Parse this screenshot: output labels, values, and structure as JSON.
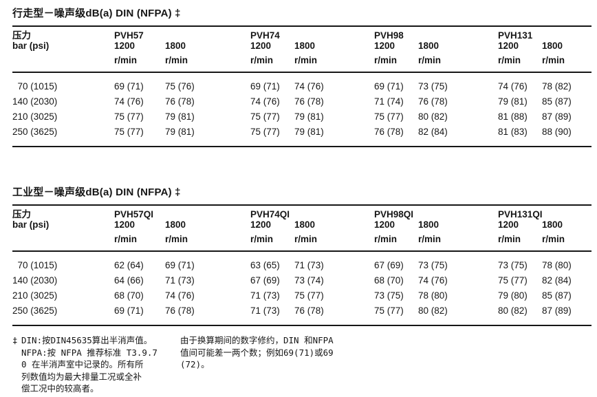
{
  "page": {
    "background": "#ffffff",
    "text_color": "#161616",
    "rule_color": "#161616"
  },
  "tables": [
    {
      "title": "行走型－噪声级dB(a) DIN (NFPA) ‡",
      "pressure_label": "压力",
      "pressure_unit": "bar (psi)",
      "groups": [
        {
          "name": "PVH57",
          "speeds": [
            {
              "rpm": "1200",
              "unit": "r/min"
            },
            {
              "rpm": "1800",
              "unit": "r/min"
            }
          ]
        },
        {
          "name": "PVH74",
          "speeds": [
            {
              "rpm": "1200",
              "unit": "r/min"
            },
            {
              "rpm": "1800",
              "unit": "r/min"
            }
          ]
        },
        {
          "name": "PVH98",
          "speeds": [
            {
              "rpm": "1200",
              "unit": "r/min"
            },
            {
              "rpm": "1800",
              "unit": "r/min"
            }
          ]
        },
        {
          "name": "PVH131",
          "speeds": [
            {
              "rpm": "1200",
              "unit": "r/min"
            },
            {
              "rpm": "1800",
              "unit": "r/min"
            }
          ]
        }
      ],
      "rows": [
        {
          "pressure": " 70 (1015)",
          "values": [
            "69 (71)",
            "75 (76)",
            "69 (71)",
            "74 (76)",
            "69 (71)",
            "73 (75)",
            "74 (76)",
            "78 (82)"
          ]
        },
        {
          "pressure": "140 (2030)",
          "values": [
            "74 (76)",
            "76 (78)",
            "74 (76)",
            "76 (78)",
            "71 (74)",
            "76 (78)",
            "79 (81)",
            "85 (87)"
          ]
        },
        {
          "pressure": "210 (3025)",
          "values": [
            "75 (77)",
            "79 (81)",
            "75 (77)",
            "79 (81)",
            "75 (77)",
            "80 (82)",
            "81 (88)",
            "87 (89)"
          ]
        },
        {
          "pressure": "250 (3625)",
          "values": [
            "75 (77)",
            "79 (81)",
            "75 (77)",
            "79 (81)",
            "76 (78)",
            "82 (84)",
            "81 (83)",
            "88 (90)"
          ]
        }
      ]
    },
    {
      "title": "工业型－噪声级dB(a) DIN (NFPA) ‡",
      "pressure_label": "压力",
      "pressure_unit": "bar (psi)",
      "groups": [
        {
          "name": "PVH57QI",
          "speeds": [
            {
              "rpm": "1200",
              "unit": "r/min"
            },
            {
              "rpm": "1800",
              "unit": "r/min"
            }
          ]
        },
        {
          "name": "PVH74QI",
          "speeds": [
            {
              "rpm": "1200",
              "unit": "r/min"
            },
            {
              "rpm": "1800",
              "unit": "r/min"
            }
          ]
        },
        {
          "name": "PVH98QI",
          "speeds": [
            {
              "rpm": "1200",
              "unit": "r/min"
            },
            {
              "rpm": "1800",
              "unit": "r/min"
            }
          ]
        },
        {
          "name": "PVH131QI",
          "speeds": [
            {
              "rpm": "1200",
              "unit": "r/min"
            },
            {
              "rpm": "1800",
              "unit": "r/min"
            }
          ]
        }
      ],
      "rows": [
        {
          "pressure": " 70 (1015)",
          "values": [
            "62 (64)",
            "69 (71)",
            "63 (65)",
            "71 (73)",
            "67 (69)",
            "73 (75)",
            "73 (75)",
            "78 (80)"
          ]
        },
        {
          "pressure": "140 (2030)",
          "values": [
            "64 (66)",
            "71 (73)",
            "67 (69)",
            "73 (74)",
            "68 (70)",
            "74 (76)",
            "75 (77)",
            "82 (84)"
          ]
        },
        {
          "pressure": "210 (3025)",
          "values": [
            "68 (70)",
            "74 (76)",
            "71 (73)",
            "75 (77)",
            "73 (75)",
            "78 (80)",
            "79 (80)",
            "85 (87)"
          ]
        },
        {
          "pressure": "250 (3625)",
          "values": [
            "69 (71)",
            "76 (78)",
            "71 (73)",
            "76 (78)",
            "75 (77)",
            "80 (82)",
            "80 (82)",
            "87 (89)"
          ]
        }
      ]
    }
  ],
  "footnotes": {
    "marker": "‡",
    "left_lines": [
      "DIN:按DIN45635算出半消声值。",
      "NFPA:按 NFPA 推荐标准 T3.9.7",
      "0 在半消声室中记录的。所有所",
      "列数值均为最大排量工况或全补",
      "偿工况中的较高者。"
    ],
    "right_lines": [
      "由于换算期间的数字修约，DIN 和NFPA",
      "值间可能差一两个数；例如69(71)或69",
      "(72)。"
    ]
  }
}
